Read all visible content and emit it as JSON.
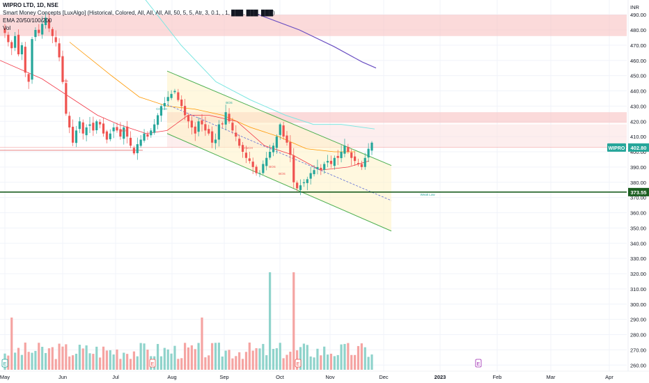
{
  "header": {
    "symbol_line": "WIPRO LTD, 1D, NSE",
    "indicator_line": "Smart Money Concepts [LuxAlgo] (Historical, Colored, All, All, All, All, 50, 5, 5, Atr, 3, 0.1, , 1, ███, ███, ███)",
    "ema_line": "EMA 20/50/100/200",
    "vol_line": "Vol"
  },
  "colors": {
    "up": "#26a69a",
    "down": "#ef5350",
    "ema20": "#f23645",
    "ema50": "#ff9800",
    "ema100": "#7ee7e2",
    "ema200": "#6a4fc2",
    "channel": "#4caf50",
    "support": "#1b5e20"
  },
  "icons": {
    "earnings": "E-marker-icon"
  },
  "chart_data": {
    "type": "candlestick",
    "symbol": "WIPRO",
    "currency": "INR",
    "ylim": [
      256,
      496
    ],
    "yticks": [
      260,
      270,
      280,
      290,
      300,
      310,
      320,
      330,
      340,
      350,
      360,
      370,
      380,
      390,
      400,
      410,
      420,
      430,
      440,
      450,
      460,
      470,
      480,
      490
    ],
    "xticks": [
      "May",
      "Jun",
      "Jul",
      "Aug",
      "Sep",
      "Oct",
      "Nov",
      "Dec",
      "2023",
      "Feb",
      "Mar",
      "Apr"
    ],
    "last_price": {
      "label": "WIPRO",
      "value": "402.80"
    },
    "support_level": {
      "value": "373.55"
    },
    "close": [
      478,
      472,
      468,
      476,
      464,
      470,
      452,
      446,
      474,
      480,
      478,
      484,
      488,
      481,
      476,
      472,
      462,
      446,
      425,
      416,
      406,
      414,
      420,
      412,
      416,
      418,
      414,
      420,
      418,
      412,
      408,
      412,
      416,
      414,
      410,
      416,
      410,
      404,
      399,
      405,
      408,
      412,
      410,
      414,
      418,
      424,
      430,
      432,
      436,
      438,
      440,
      434,
      430,
      424,
      420,
      416,
      412,
      420,
      418,
      414,
      412,
      406,
      408,
      418,
      418,
      426,
      420,
      414,
      410,
      404,
      400,
      396,
      394,
      390,
      386,
      386,
      392,
      396,
      400,
      404,
      410,
      418,
      410,
      406,
      398,
      380,
      376,
      378,
      380,
      382,
      386,
      388,
      390,
      388,
      392,
      394,
      392,
      396,
      396,
      400,
      404,
      400,
      396,
      394,
      392,
      390,
      396,
      402,
      406
    ],
    "volume_scale": "relative",
    "ema20": [
      [
        0,
        460
      ],
      [
        60,
        448
      ],
      [
        100,
        436
      ],
      [
        140,
        424
      ],
      [
        170,
        418
      ],
      [
        210,
        412
      ],
      [
        240,
        414
      ],
      [
        270,
        424
      ],
      [
        300,
        424
      ],
      [
        340,
        420
      ],
      [
        380,
        404
      ],
      [
        420,
        398
      ],
      [
        460,
        388
      ],
      [
        500,
        390
      ],
      [
        530,
        394
      ]
    ],
    "ema50": [
      [
        100,
        472
      ],
      [
        160,
        450
      ],
      [
        200,
        436
      ],
      [
        240,
        430
      ],
      [
        280,
        428
      ],
      [
        320,
        424
      ],
      [
        360,
        416
      ],
      [
        400,
        410
      ],
      [
        440,
        402
      ],
      [
        480,
        400
      ],
      [
        510,
        400
      ]
    ],
    "ema100": [
      [
        200,
        505
      ],
      [
        260,
        470
      ],
      [
        310,
        446
      ],
      [
        360,
        434
      ],
      [
        410,
        424
      ],
      [
        450,
        418
      ],
      [
        490,
        418
      ],
      [
        538,
        415
      ]
    ],
    "ema200": [
      [
        360,
        492
      ],
      [
        430,
        480
      ],
      [
        480,
        469
      ],
      [
        520,
        459
      ],
      [
        540,
        455
      ]
    ],
    "channel": {
      "upper": [
        [
          "Jul-20",
          453
        ],
        [
          "Dec-01",
          391
        ]
      ],
      "mid": [
        [
          "Jul-20",
          431
        ],
        [
          "Dec-01",
          368
        ]
      ],
      "lower": [
        [
          "Jul-20",
          412
        ],
        [
          "Dec-01",
          348
        ]
      ]
    },
    "zones": [
      {
        "from": "May-01",
        "to": "Apr-30",
        "low": 476,
        "high": 490,
        "color": "#f8bbbb"
      },
      {
        "from": "Jul-30",
        "to": "Apr-30",
        "low": 419,
        "high": 426,
        "color": "#f8bbbb"
      },
      {
        "from": "Jul-30",
        "to": "Apr-30",
        "low": 403,
        "high": 418,
        "color": "#fce0e0"
      }
    ],
    "labels": [
      "BOS",
      "BOS",
      "CHoCH",
      "BOS",
      "CHoCH",
      "BOS",
      "BOS",
      "Weak Low"
    ],
    "earnings_markers": [
      "E",
      "E",
      "E",
      "E"
    ]
  }
}
